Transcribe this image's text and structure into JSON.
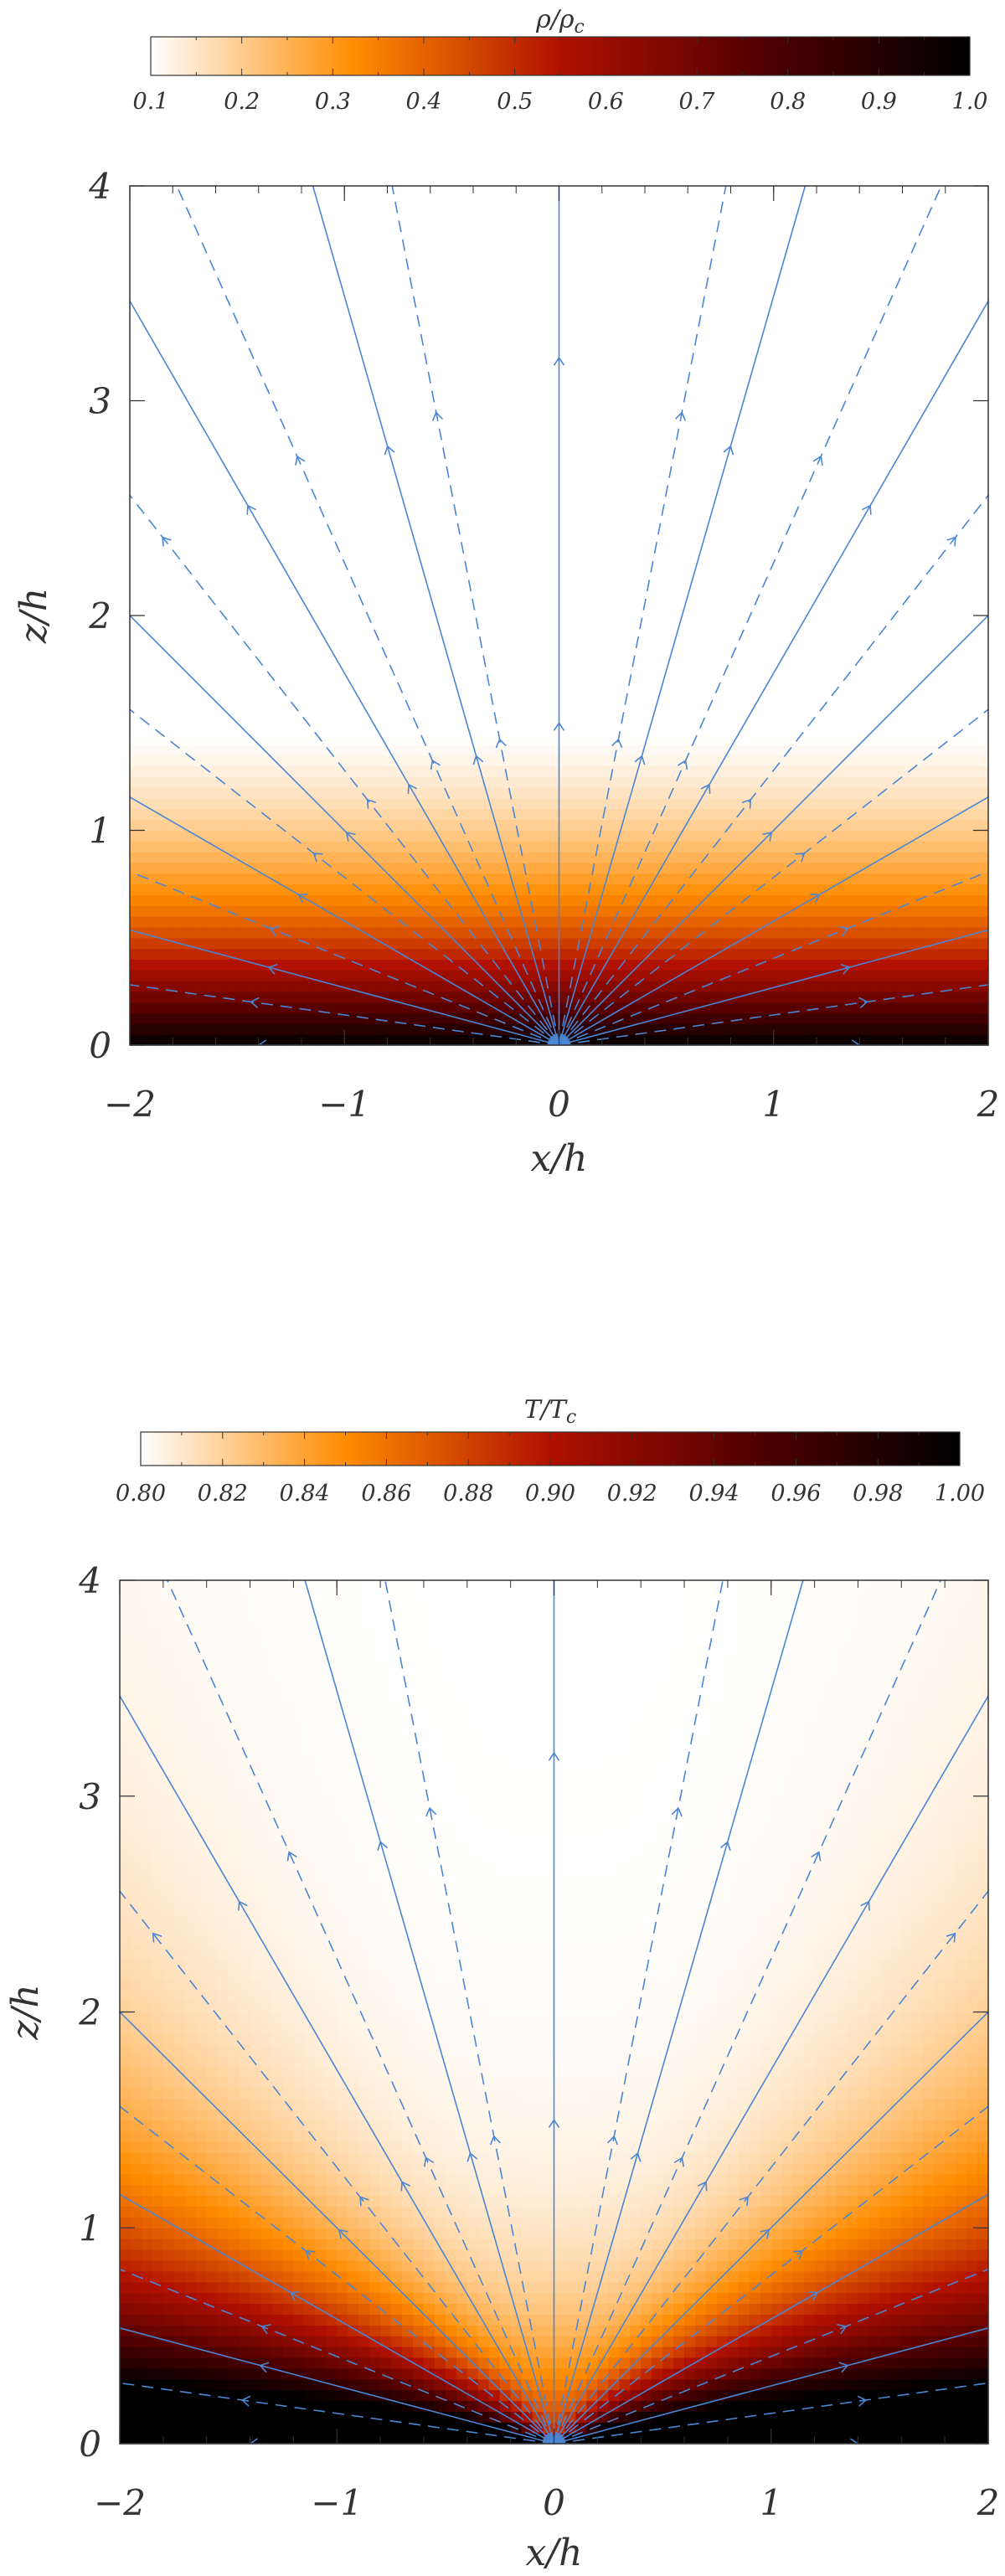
{
  "chart_data": [
    {
      "type": "heatmap",
      "colorbar": {
        "label": "ρ/ρ_c",
        "ticks": [
          "0.1",
          "0.2",
          "0.3",
          "0.4",
          "0.5",
          "0.6",
          "0.7",
          "0.8",
          "0.9",
          "1.0"
        ],
        "range": [
          0.1,
          1.0
        ],
        "colormap": [
          "#ffffff",
          "#ff8c00",
          "#b01000",
          "#500000",
          "#000000"
        ]
      },
      "xlabel": "x/h",
      "ylabel": "z/h",
      "xlim": [
        -2,
        2
      ],
      "ylim": [
        0,
        4
      ],
      "xticks": [
        "−2",
        "−1",
        "0",
        "1",
        "2"
      ],
      "yticks": [
        "0",
        "1",
        "2",
        "3",
        "4"
      ],
      "field": "density, maximum 1.0 at z=0, falling to ≤0.1 above z≈1.4",
      "streamline_color": "#4a86d4",
      "solid_streamline_angles_deg": [
        90,
        74,
        60,
        45,
        30,
        15,
        0
      ],
      "dashed_streamline_angles_deg": [
        79,
        66,
        52,
        38,
        22,
        8
      ],
      "grid": false
    },
    {
      "type": "heatmap",
      "colorbar": {
        "label": "T/T_c",
        "ticks": [
          "0.80",
          "0.82",
          "0.84",
          "0.86",
          "0.88",
          "0.90",
          "0.92",
          "0.94",
          "0.96",
          "0.98",
          "1.00"
        ],
        "range": [
          0.8,
          1.0
        ],
        "colormap": [
          "#ffffff",
          "#ff8c00",
          "#b01000",
          "#500000",
          "#000000"
        ]
      },
      "xlabel": "x/h",
      "ylabel": "z/h",
      "xlim": [
        -2,
        2
      ],
      "ylim": [
        0,
        4
      ],
      "xticks": [
        "−2",
        "−1",
        "0",
        "1",
        "2"
      ],
      "yticks": [
        "0",
        "1",
        "2",
        "3",
        "4"
      ],
      "field": "temperature, maximum 1.0 at z=0, minimum 0.8 along the z axis",
      "streamline_color": "#4a86d4",
      "solid_streamline_angles_deg": [
        90,
        74,
        60,
        45,
        30,
        15,
        0
      ],
      "dashed_streamline_angles_deg": [
        79,
        66,
        52,
        38,
        22,
        8
      ],
      "grid": false
    }
  ]
}
